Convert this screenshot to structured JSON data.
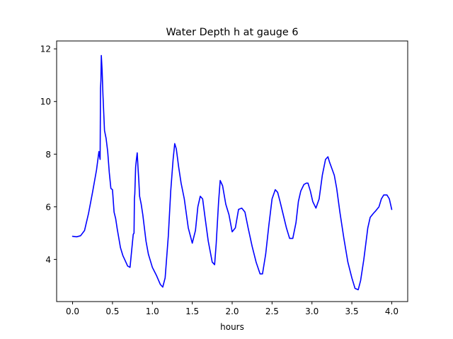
{
  "chart_data": {
    "type": "line",
    "title": "Water Depth h at gauge 6",
    "xlabel": "hours",
    "ylabel": "",
    "xlim": [
      -0.2,
      4.2
    ],
    "ylim": [
      2.4,
      12.3
    ],
    "xticks": [
      0.0,
      0.5,
      1.0,
      1.5,
      2.0,
      2.5,
      3.0,
      3.5,
      4.0
    ],
    "xtick_labels": [
      "0.0",
      "0.5",
      "1.0",
      "1.5",
      "2.0",
      "2.5",
      "3.0",
      "3.5",
      "4.0"
    ],
    "yticks": [
      4,
      6,
      8,
      10,
      12
    ],
    "ytick_labels": [
      "4",
      "6",
      "8",
      "10",
      "12"
    ],
    "grid": false,
    "series": [
      {
        "name": "",
        "color": "#0000ff",
        "x": [
          0.0,
          0.05,
          0.1,
          0.15,
          0.2,
          0.25,
          0.3,
          0.33,
          0.345,
          0.35,
          0.355,
          0.36,
          0.37,
          0.38,
          0.39,
          0.4,
          0.42,
          0.44,
          0.46,
          0.48,
          0.5,
          0.52,
          0.54,
          0.56,
          0.58,
          0.6,
          0.63,
          0.66,
          0.69,
          0.72,
          0.76,
          0.77,
          0.775,
          0.78,
          0.79,
          0.8,
          0.81,
          0.82,
          0.83,
          0.84,
          0.86,
          0.88,
          0.9,
          0.92,
          0.95,
          1.0,
          1.05,
          1.1,
          1.13,
          1.16,
          1.2,
          1.23,
          1.26,
          1.28,
          1.3,
          1.33,
          1.36,
          1.4,
          1.45,
          1.5,
          1.54,
          1.57,
          1.6,
          1.63,
          1.66,
          1.7,
          1.75,
          1.78,
          1.8,
          1.83,
          1.85,
          1.88,
          1.92,
          1.96,
          2.0,
          2.04,
          2.08,
          2.12,
          2.16,
          2.2,
          2.25,
          2.3,
          2.35,
          2.38,
          2.42,
          2.46,
          2.5,
          2.54,
          2.57,
          2.6,
          2.64,
          2.68,
          2.72,
          2.76,
          2.8,
          2.83,
          2.86,
          2.9,
          2.93,
          2.95,
          2.98,
          3.01,
          3.05,
          3.09,
          3.13,
          3.17,
          3.2,
          3.22,
          3.25,
          3.28,
          3.31,
          3.35,
          3.4,
          3.45,
          3.5,
          3.54,
          3.58,
          3.61,
          3.65,
          3.7,
          3.73,
          3.77,
          3.8,
          3.84,
          3.87,
          3.9,
          3.94,
          3.97,
          4.0
        ],
        "y": [
          4.88,
          4.86,
          4.9,
          5.1,
          5.75,
          6.55,
          7.4,
          8.1,
          7.8,
          10.5,
          10.8,
          11.75,
          11.2,
          10.3,
          9.6,
          8.9,
          8.6,
          8.1,
          7.3,
          6.7,
          6.65,
          5.8,
          5.55,
          5.15,
          4.8,
          4.45,
          4.15,
          3.95,
          3.75,
          3.7,
          4.95,
          5.0,
          6.3,
          6.5,
          7.5,
          7.8,
          8.05,
          7.5,
          7.0,
          6.4,
          6.1,
          5.7,
          5.2,
          4.7,
          4.2,
          3.7,
          3.4,
          3.05,
          2.95,
          3.3,
          4.9,
          6.6,
          7.8,
          8.4,
          8.2,
          7.5,
          6.9,
          6.3,
          5.2,
          4.62,
          5.1,
          6.0,
          6.4,
          6.3,
          5.6,
          4.7,
          3.9,
          3.8,
          4.6,
          6.2,
          7.0,
          6.8,
          6.1,
          5.7,
          5.05,
          5.2,
          5.9,
          5.95,
          5.8,
          5.2,
          4.5,
          3.9,
          3.45,
          3.45,
          4.2,
          5.3,
          6.3,
          6.65,
          6.55,
          6.2,
          5.7,
          5.2,
          4.8,
          4.8,
          5.4,
          6.2,
          6.6,
          6.85,
          6.9,
          6.9,
          6.6,
          6.2,
          5.95,
          6.3,
          7.2,
          7.8,
          7.9,
          7.7,
          7.45,
          7.2,
          6.7,
          5.8,
          4.8,
          3.9,
          3.3,
          2.9,
          2.85,
          3.2,
          4.0,
          5.2,
          5.6,
          5.75,
          5.85,
          6.0,
          6.3,
          6.45,
          6.45,
          6.3,
          5.9
        ]
      }
    ]
  }
}
